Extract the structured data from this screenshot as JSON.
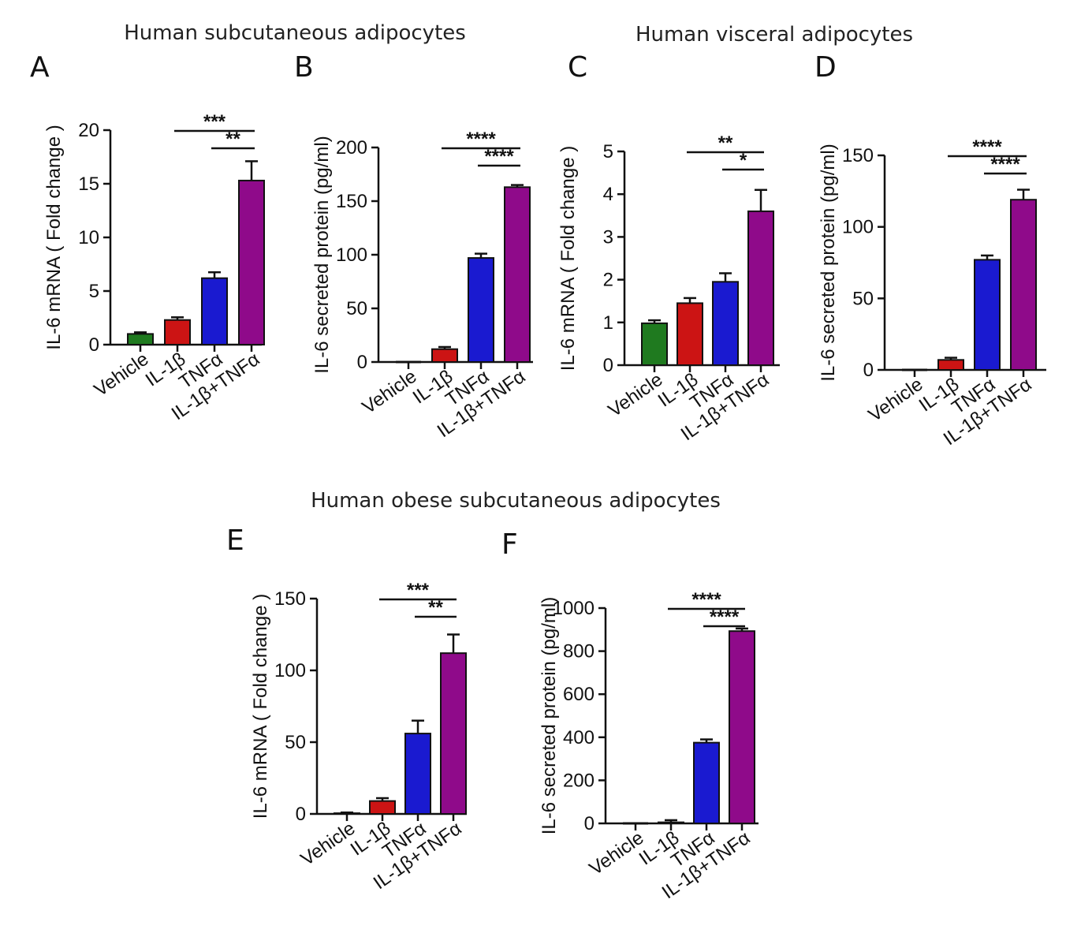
{
  "group_titles": {
    "subcutaneous": "Human subcutaneous adipocytes",
    "visceral": "Human visceral adipocytes",
    "obese": "Human obese subcutaneous adipocytes"
  },
  "colors": {
    "Vehicle": "#1f7a1f",
    "IL-1β": "#cc1414",
    "TNFα": "#1a1ad0",
    "IL-1β+TNFα": "#8f0a8a",
    "axis": "#111111"
  },
  "chart_data": [
    {
      "id": "A",
      "letter": "A",
      "type": "bar",
      "categories": [
        "Vehicle",
        "IL-1β",
        "TNFα",
        "IL-1β+TNFα"
      ],
      "values": [
        1.0,
        2.3,
        6.2,
        15.3
      ],
      "errors": [
        0.15,
        0.25,
        0.55,
        1.8
      ],
      "ylabel": "IL-6 mRNA ( Fold change )",
      "ylim": [
        0,
        20
      ],
      "yticks": [
        0,
        5,
        10,
        15,
        20
      ],
      "significance": [
        {
          "from": 1,
          "to": 3,
          "label": "***"
        },
        {
          "from": 2,
          "to": 3,
          "label": "**"
        }
      ]
    },
    {
      "id": "B",
      "letter": "B",
      "type": "bar",
      "categories": [
        "Vehicle",
        "IL-1β",
        "TNFα",
        "IL-1β+TNFα"
      ],
      "values": [
        0,
        12,
        97,
        163
      ],
      "errors": [
        0,
        2,
        4,
        2
      ],
      "ylabel": "IL-6 secreted protein (pg/ml)",
      "ylim": [
        0,
        200
      ],
      "yticks": [
        0,
        50,
        100,
        150,
        200
      ],
      "significance": [
        {
          "from": 1,
          "to": 3,
          "label": "****"
        },
        {
          "from": 2,
          "to": 3,
          "label": "****"
        }
      ]
    },
    {
      "id": "C",
      "letter": "C",
      "type": "bar",
      "categories": [
        "Vehicle",
        "IL-1β",
        "TNFα",
        "IL-1β+TNFα"
      ],
      "values": [
        0.98,
        1.45,
        1.95,
        3.6
      ],
      "errors": [
        0.07,
        0.12,
        0.2,
        0.5
      ],
      "ylabel": "IL-6 mRNA ( Fold change )",
      "ylim": [
        0,
        5
      ],
      "yticks": [
        0,
        1,
        2,
        3,
        4,
        5
      ],
      "significance": [
        {
          "from": 1,
          "to": 3,
          "label": "**"
        },
        {
          "from": 2,
          "to": 3,
          "label": "*"
        }
      ]
    },
    {
      "id": "D",
      "letter": "D",
      "type": "bar",
      "categories": [
        "Vehicle",
        "IL-1β",
        "TNFα",
        "IL-1β+TNFα"
      ],
      "values": [
        0,
        7,
        77,
        119
      ],
      "errors": [
        0,
        1.5,
        3,
        7
      ],
      "ylabel": "IL-6 secreted protein (pg/ml)",
      "ylim": [
        0,
        150
      ],
      "yticks": [
        0,
        50,
        100,
        150
      ],
      "significance": [
        {
          "from": 1,
          "to": 3,
          "label": "****"
        },
        {
          "from": 2,
          "to": 3,
          "label": "****"
        }
      ]
    },
    {
      "id": "E",
      "letter": "E",
      "type": "bar",
      "categories": [
        "Vehicle",
        "IL-1β",
        "TNFα",
        "IL-1β+TNFα"
      ],
      "values": [
        0.5,
        9,
        56,
        112
      ],
      "errors": [
        0.5,
        2,
        9,
        13
      ],
      "ylabel": "IL-6 mRNA ( Fold change )",
      "ylim": [
        0,
        150
      ],
      "yticks": [
        0,
        50,
        100,
        150
      ],
      "significance": [
        {
          "from": 1,
          "to": 3,
          "label": "***"
        },
        {
          "from": 2,
          "to": 3,
          "label": "**"
        }
      ]
    },
    {
      "id": "F",
      "letter": "F",
      "type": "bar",
      "categories": [
        "Vehicle",
        "IL-1β",
        "TNFα",
        "IL-1β+TNFα"
      ],
      "values": [
        0,
        5,
        375,
        893
      ],
      "errors": [
        0,
        10,
        15,
        12
      ],
      "ylabel": "IL-6 secreted protein (pg/ml)",
      "ylim": [
        0,
        1000
      ],
      "yticks": [
        0,
        200,
        400,
        600,
        800,
        1000
      ],
      "significance": [
        {
          "from": 1,
          "to": 3,
          "label": "****"
        },
        {
          "from": 2,
          "to": 3,
          "label": "****"
        }
      ]
    }
  ]
}
